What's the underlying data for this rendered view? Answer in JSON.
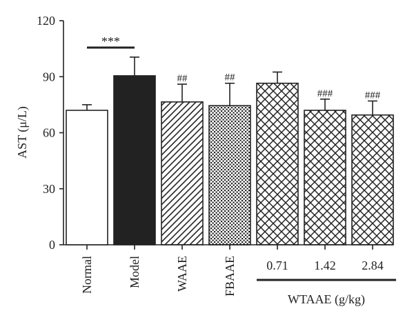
{
  "chart_data": {
    "type": "bar",
    "ylabel": "AST (μ/L)",
    "ylim": [
      0,
      120
    ],
    "yticks": [
      0,
      30,
      60,
      90,
      120
    ],
    "grid": false,
    "categories": [
      "Normal",
      "Model",
      "WAAE",
      "FBAAE",
      "0.71",
      "1.42",
      "2.84"
    ],
    "values": [
      72,
      90.5,
      76.5,
      74.5,
      86.5,
      72,
      69.5
    ],
    "errors": [
      3,
      10,
      9.5,
      12,
      6,
      6,
      7.5
    ],
    "fills": [
      "white",
      "black",
      "diagonal",
      "dots",
      "crosshatch",
      "crosshatch",
      "crosshatch"
    ],
    "annotations": [
      "",
      "",
      "##",
      "##",
      "",
      "###",
      "###"
    ],
    "significance": {
      "text": "***",
      "from": "Normal",
      "to": "Model"
    },
    "group_label": {
      "text": "WTAAE (g/kg)",
      "from": "0.71",
      "to": "2.84"
    },
    "colors": {
      "bar_stroke": "#222222",
      "model_fill": "#222222"
    }
  }
}
